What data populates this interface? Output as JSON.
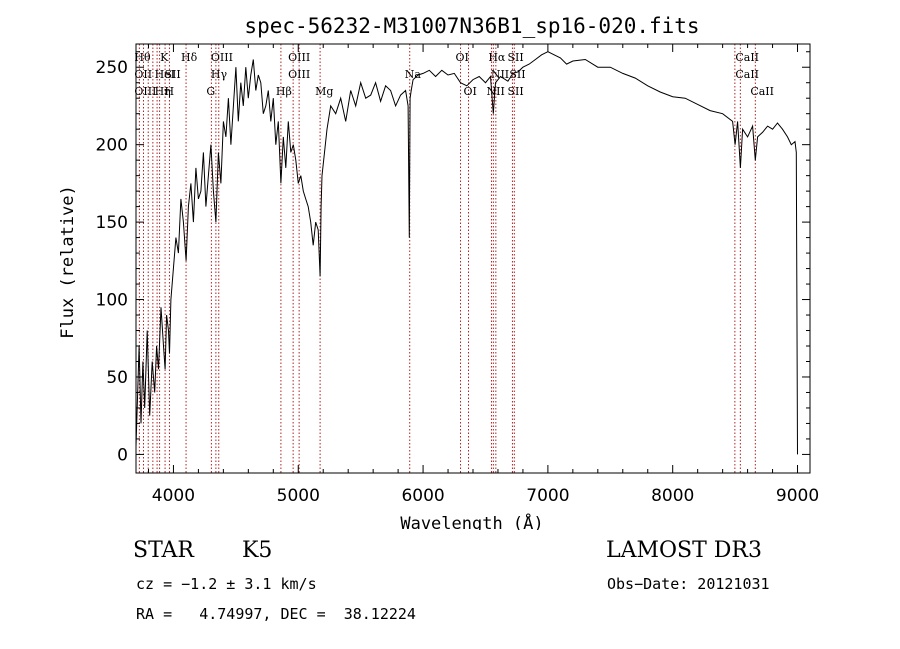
{
  "chart_data": {
    "type": "line",
    "title": "spec-56232-M31007N36B1_sp16-020.fits",
    "xlabel": "Wavelength (Å)",
    "ylabel": "Flux (relative)",
    "xlim": [
      3700,
      9100
    ],
    "ylim": [
      -12,
      265
    ],
    "x_ticks": [
      4000,
      5000,
      6000,
      7000,
      8000,
      9000
    ],
    "y_ticks": [
      0,
      50,
      100,
      150,
      200,
      250
    ],
    "series": [
      {
        "name": "flux",
        "x": [
          3700,
          3725,
          3740,
          3755,
          3770,
          3790,
          3810,
          3830,
          3850,
          3865,
          3880,
          3900,
          3920,
          3933,
          3945,
          3960,
          3968,
          3980,
          4000,
          4020,
          4040,
          4060,
          4080,
          4101,
          4120,
          4140,
          4160,
          4180,
          4200,
          4220,
          4240,
          4260,
          4280,
          4300,
          4320,
          4340,
          4360,
          4380,
          4400,
          4420,
          4440,
          4460,
          4480,
          4500,
          4520,
          4540,
          4560,
          4580,
          4600,
          4620,
          4640,
          4660,
          4680,
          4700,
          4720,
          4740,
          4760,
          4780,
          4800,
          4820,
          4840,
          4861,
          4880,
          4900,
          4920,
          4940,
          4960,
          4980,
          5000,
          5020,
          5040,
          5060,
          5080,
          5100,
          5120,
          5140,
          5160,
          5175,
          5183,
          5190,
          5210,
          5230,
          5260,
          5300,
          5340,
          5380,
          5420,
          5460,
          5500,
          5540,
          5580,
          5620,
          5660,
          5700,
          5740,
          5780,
          5820,
          5860,
          5880,
          5890,
          5896,
          5905,
          5920,
          5960,
          6000,
          6050,
          6100,
          6150,
          6200,
          6250,
          6300,
          6350,
          6400,
          6450,
          6500,
          6540,
          6563,
          6580,
          6620,
          6680,
          6720,
          6760,
          6800,
          6850,
          6900,
          6950,
          7000,
          7050,
          7100,
          7150,
          7200,
          7300,
          7400,
          7500,
          7600,
          7700,
          7800,
          7900,
          8000,
          8100,
          8200,
          8300,
          8400,
          8480,
          8500,
          8520,
          8542,
          8560,
          8600,
          8640,
          8662,
          8680,
          8720,
          8760,
          8800,
          8840,
          8880,
          8920,
          8950,
          8980,
          8990,
          9000
        ],
        "y": [
          5,
          70,
          20,
          60,
          30,
          80,
          25,
          60,
          40,
          70,
          55,
          95,
          70,
          55,
          90,
          80,
          65,
          100,
          120,
          140,
          130,
          165,
          150,
          125,
          160,
          175,
          150,
          185,
          165,
          170,
          195,
          160,
          180,
          200,
          170,
          150,
          195,
          175,
          215,
          205,
          230,
          200,
          225,
          250,
          215,
          240,
          225,
          250,
          230,
          245,
          255,
          235,
          245,
          240,
          220,
          225,
          235,
          215,
          230,
          200,
          215,
          175,
          205,
          185,
          215,
          195,
          200,
          190,
          175,
          180,
          170,
          165,
          160,
          150,
          135,
          150,
          145,
          115,
          160,
          180,
          195,
          210,
          225,
          220,
          230,
          215,
          235,
          225,
          240,
          230,
          232,
          240,
          228,
          238,
          235,
          225,
          232,
          235,
          225,
          140,
          230,
          235,
          242,
          245,
          246,
          248,
          244,
          248,
          245,
          246,
          240,
          238,
          242,
          244,
          240,
          244,
          220,
          240,
          244,
          241,
          246,
          247,
          250,
          252,
          255,
          258,
          260,
          258,
          256,
          252,
          254,
          255,
          250,
          250,
          246,
          243,
          238,
          234,
          231,
          230,
          226,
          222,
          220,
          215,
          200,
          215,
          185,
          210,
          205,
          212,
          190,
          205,
          208,
          212,
          210,
          214,
          210,
          205,
          200,
          202,
          195,
          0
        ]
      }
    ],
    "lines": [
      {
        "x": 3727,
        "top": "Hθ",
        "mid": "OII",
        "bot": "OIII"
      },
      {
        "x": 3760,
        "top": "",
        "mid": "",
        "bot": ""
      },
      {
        "x": 3798,
        "top": "",
        "mid": "",
        "bot": ""
      },
      {
        "x": 3835,
        "top": "",
        "mid": "",
        "bot": ""
      },
      {
        "x": 3869,
        "top": "",
        "mid": "",
        "bot": ""
      },
      {
        "x": 3889,
        "top": "",
        "mid": "HeI",
        "bot": "Hη"
      },
      {
        "x": 3933,
        "top": "K",
        "mid": "",
        "bot": ""
      },
      {
        "x": 3968,
        "top": "",
        "mid": "SII",
        "bot": "H"
      },
      {
        "x": 4101,
        "top": "Hδ",
        "mid": "",
        "bot": ""
      },
      {
        "x": 4304,
        "top": "",
        "mid": "",
        "bot": "G"
      },
      {
        "x": 4340,
        "top": "OIII",
        "mid": "Hγ",
        "bot": ""
      },
      {
        "x": 4363,
        "top": "",
        "mid": "",
        "bot": ""
      },
      {
        "x": 4861,
        "top": "",
        "mid": "",
        "bot": "Hβ"
      },
      {
        "x": 4959,
        "top": "OIII",
        "mid": "OIII",
        "bot": ""
      },
      {
        "x": 5007,
        "top": "",
        "mid": "",
        "bot": ""
      },
      {
        "x": 5175,
        "top": "",
        "mid": "",
        "bot": "Mg"
      },
      {
        "x": 5893,
        "top": "",
        "mid": "Na",
        "bot": ""
      },
      {
        "x": 6300,
        "top": "OI",
        "mid": "",
        "bot": ""
      },
      {
        "x": 6364,
        "top": "",
        "mid": "",
        "bot": "OI"
      },
      {
        "x": 6548,
        "top": "",
        "mid": "",
        "bot": "NII"
      },
      {
        "x": 6563,
        "top": "Hα",
        "mid": "",
        "bot": ""
      },
      {
        "x": 6583,
        "top": "",
        "mid": "NII",
        "bot": ""
      },
      {
        "x": 6716,
        "top": "SII",
        "mid": "",
        "bot": "SII"
      },
      {
        "x": 6731,
        "top": "",
        "mid": "SII",
        "bot": ""
      },
      {
        "x": 8498,
        "top": "",
        "mid": "",
        "bot": ""
      },
      {
        "x": 8542,
        "top": "CaII",
        "mid": "CaII",
        "bot": ""
      },
      {
        "x": 8662,
        "top": "",
        "mid": "",
        "bot": "CaII"
      }
    ]
  },
  "info": {
    "class_label": "STAR",
    "subclass_label": "K5",
    "survey": "LAMOST DR3",
    "cz": "cz = −1.2 ± 3.1 km/s",
    "obs_date": "Obs−Date: 20121031",
    "radec": "RA =   4.74997, DEC =  38.12224"
  },
  "colors": {
    "line": "#000000",
    "marker": "#b22222",
    "background": "#ffffff"
  }
}
